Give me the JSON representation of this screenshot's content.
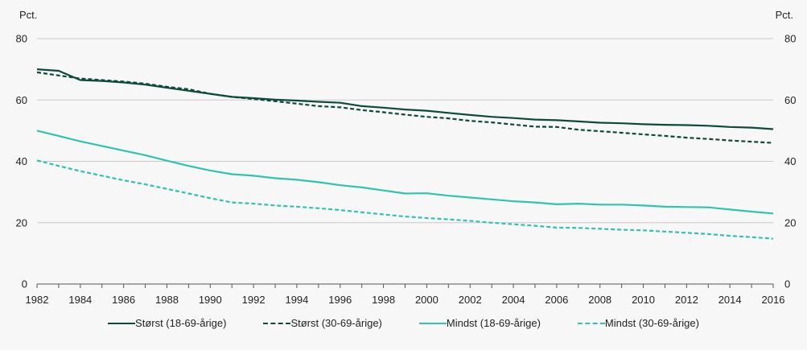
{
  "chart_data": {
    "type": "line",
    "y_unit_left": "Pct.",
    "y_unit_right": "Pct.",
    "ylim": [
      0,
      80
    ],
    "yticks": [
      0,
      20,
      40,
      60,
      80
    ],
    "xlim": [
      1982,
      2016
    ],
    "xticks": [
      1982,
      1984,
      1986,
      1988,
      1990,
      1992,
      1994,
      1996,
      1998,
      2000,
      2002,
      2004,
      2006,
      2008,
      2010,
      2012,
      2014,
      2016
    ],
    "grid": true,
    "legend_position": "bottom",
    "x": [
      1982,
      1983,
      1984,
      1985,
      1986,
      1987,
      1988,
      1989,
      1990,
      1991,
      1992,
      1993,
      1994,
      1995,
      1996,
      1997,
      1998,
      1999,
      2000,
      2001,
      2002,
      2003,
      2004,
      2005,
      2006,
      2007,
      2008,
      2009,
      2010,
      2011,
      2012,
      2013,
      2014,
      2015,
      2016
    ],
    "series": [
      {
        "name": "Størst (18-69-årige)",
        "color": "#0d4a3c",
        "dash": "solid",
        "values": [
          70.0,
          69.5,
          66.5,
          66.2,
          65.7,
          65.0,
          64.0,
          63.0,
          62.0,
          61.0,
          60.6,
          60.1,
          59.8,
          59.4,
          59.1,
          58.0,
          57.5,
          56.9,
          56.5,
          55.8,
          55.1,
          54.5,
          54.1,
          53.6,
          53.4,
          53.0,
          52.6,
          52.4,
          52.1,
          51.9,
          51.8,
          51.6,
          51.2,
          51.0,
          50.5
        ]
      },
      {
        "name": "Størst (30-69-årige)",
        "color": "#0d4a3c",
        "dash": "dashed",
        "values": [
          69.0,
          68.0,
          67.0,
          66.5,
          66.0,
          65.3,
          64.3,
          63.5,
          62.0,
          61.0,
          60.3,
          59.6,
          58.8,
          58.0,
          57.6,
          56.7,
          56.0,
          55.2,
          54.5,
          54.0,
          53.2,
          52.7,
          52.0,
          51.3,
          51.2,
          50.3,
          49.8,
          49.3,
          48.8,
          48.3,
          47.7,
          47.3,
          46.8,
          46.4,
          46.0
        ]
      },
      {
        "name": "Mindst (18-69-årige)",
        "color": "#2ec4b0",
        "dash": "solid",
        "values": [
          50.0,
          48.3,
          46.5,
          45.0,
          43.5,
          42.0,
          40.2,
          38.5,
          37.0,
          35.8,
          35.3,
          34.5,
          34.0,
          33.2,
          32.2,
          31.5,
          30.5,
          29.5,
          29.6,
          28.8,
          28.2,
          27.6,
          27.0,
          26.6,
          26.0,
          26.2,
          25.9,
          25.9,
          25.6,
          25.2,
          25.1,
          25.0,
          24.3,
          23.6,
          23.0
        ]
      },
      {
        "name": "Mindst (30-69-årige)",
        "color": "#2ec4b0",
        "dash": "dashed",
        "values": [
          40.3,
          38.5,
          36.8,
          35.3,
          33.8,
          32.5,
          31.0,
          29.5,
          28.0,
          26.6,
          26.2,
          25.6,
          25.2,
          24.7,
          24.1,
          23.4,
          22.7,
          22.0,
          21.5,
          21.1,
          20.6,
          20.0,
          19.5,
          19.0,
          18.4,
          18.3,
          18.0,
          17.7,
          17.5,
          17.1,
          16.7,
          16.3,
          15.7,
          15.3,
          14.8
        ]
      }
    ]
  }
}
